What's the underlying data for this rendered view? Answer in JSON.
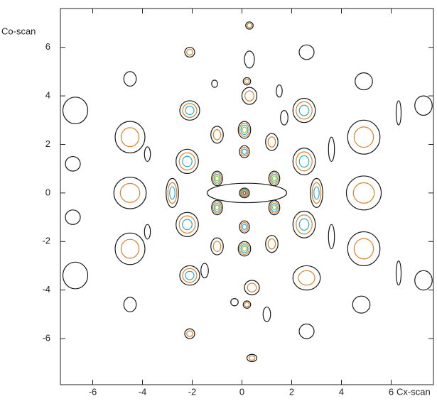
{
  "chart_data": {
    "type": "contour",
    "x_label": "Cx-scan",
    "y_label": "Co-scan",
    "xlim": [
      -7.3,
      7.7
    ],
    "ylim": [
      -7.9,
      7.6
    ],
    "xticks": [
      -6,
      -4,
      -2,
      0,
      2,
      4,
      6
    ],
    "yticks": [
      -6,
      -4,
      -2,
      0,
      2,
      4,
      6
    ],
    "level_colors": [
      "#1a1a1a",
      "#d9822b",
      "#29a9d9",
      "#a8c820",
      "#d0145a"
    ],
    "contours": [
      {
        "x": -6.7,
        "y": 3.4,
        "rx": 0.5,
        "ry": 0.55,
        "n": 1
      },
      {
        "x": -6.8,
        "y": 1.2,
        "rx": 0.3,
        "ry": 0.3,
        "n": 1
      },
      {
        "x": -6.8,
        "y": -1.0,
        "rx": 0.3,
        "ry": 0.3,
        "n": 1
      },
      {
        "x": -6.7,
        "y": -3.4,
        "rx": 0.5,
        "ry": 0.55,
        "n": 1
      },
      {
        "x": -4.5,
        "y": 2.3,
        "rx": 0.6,
        "ry": 0.65,
        "n": 2
      },
      {
        "x": -4.5,
        "y": 0.0,
        "rx": 0.65,
        "ry": 0.65,
        "n": 2
      },
      {
        "x": -4.5,
        "y": -2.3,
        "rx": 0.6,
        "ry": 0.65,
        "n": 2
      },
      {
        "x": 4.9,
        "y": 2.3,
        "rx": 0.65,
        "ry": 0.7,
        "n": 2
      },
      {
        "x": 4.9,
        "y": 0.0,
        "rx": 0.7,
        "ry": 0.7,
        "n": 2
      },
      {
        "x": 4.9,
        "y": -2.3,
        "rx": 0.65,
        "ry": 0.7,
        "n": 2
      },
      {
        "x": 2.5,
        "y": 3.4,
        "rx": 0.45,
        "ry": 0.5,
        "n": 3
      },
      {
        "x": 2.6,
        "y": -3.5,
        "rx": 0.55,
        "ry": 0.5,
        "n": 2
      },
      {
        "x": -2.1,
        "y": 3.4,
        "rx": 0.4,
        "ry": 0.4,
        "n": 3
      },
      {
        "x": -2.1,
        "y": -3.4,
        "rx": 0.4,
        "ry": 0.4,
        "n": 3
      },
      {
        "x": -2.2,
        "y": 1.3,
        "rx": 0.45,
        "ry": 0.5,
        "n": 3
      },
      {
        "x": -2.2,
        "y": -1.3,
        "rx": 0.45,
        "ry": 0.5,
        "n": 3
      },
      {
        "x": 2.5,
        "y": 1.3,
        "rx": 0.45,
        "ry": 0.55,
        "n": 3
      },
      {
        "x": 2.5,
        "y": -1.3,
        "rx": 0.45,
        "ry": 0.55,
        "n": 3
      },
      {
        "x": -2.8,
        "y": 0.0,
        "rx": 0.25,
        "ry": 0.6,
        "n": 3
      },
      {
        "x": 3.0,
        "y": 0.0,
        "rx": 0.25,
        "ry": 0.6,
        "n": 3
      },
      {
        "x": -1.0,
        "y": 0.6,
        "rx": 0.22,
        "ry": 0.3,
        "n": 4
      },
      {
        "x": -1.0,
        "y": -0.6,
        "rx": 0.22,
        "ry": 0.3,
        "n": 4
      },
      {
        "x": 1.3,
        "y": 0.6,
        "rx": 0.22,
        "ry": 0.3,
        "n": 4
      },
      {
        "x": 1.3,
        "y": -0.6,
        "rx": 0.22,
        "ry": 0.3,
        "n": 4
      },
      {
        "x": 0.2,
        "y": 0.0,
        "rx": 1.6,
        "ry": 0.4,
        "n": 1
      },
      {
        "x": 0.1,
        "y": 0.0,
        "rx": 0.2,
        "ry": 0.2,
        "n": 5
      },
      {
        "x": 0.1,
        "y": 2.6,
        "rx": 0.25,
        "ry": 0.35,
        "n": 4
      },
      {
        "x": 0.1,
        "y": -2.3,
        "rx": 0.25,
        "ry": 0.3,
        "n": 4
      },
      {
        "x": 0.1,
        "y": 1.7,
        "rx": 0.2,
        "ry": 0.25,
        "n": 3
      },
      {
        "x": 0.1,
        "y": -1.4,
        "rx": 0.2,
        "ry": 0.25,
        "n": 3
      },
      {
        "x": -1.0,
        "y": 2.4,
        "rx": 0.25,
        "ry": 0.35,
        "n": 2
      },
      {
        "x": 1.2,
        "y": 2.1,
        "rx": 0.25,
        "ry": 0.35,
        "n": 2
      },
      {
        "x": -1.0,
        "y": -2.2,
        "rx": 0.25,
        "ry": 0.35,
        "n": 2
      },
      {
        "x": 1.2,
        "y": -2.1,
        "rx": 0.25,
        "ry": 0.35,
        "n": 2
      },
      {
        "x": 0.2,
        "y": 4.6,
        "rx": 0.15,
        "ry": 0.15,
        "n": 2
      },
      {
        "x": 0.2,
        "y": -4.6,
        "rx": 0.15,
        "ry": 0.15,
        "n": 2
      },
      {
        "x": 0.3,
        "y": 4.0,
        "rx": 0.3,
        "ry": 0.35,
        "n": 2
      },
      {
        "x": 0.4,
        "y": -3.9,
        "rx": 0.3,
        "ry": 0.3,
        "n": 2
      },
      {
        "x": 0.3,
        "y": 6.9,
        "rx": 0.15,
        "ry": 0.15,
        "n": 2
      },
      {
        "x": 0.4,
        "y": -6.8,
        "rx": 0.2,
        "ry": 0.15,
        "n": 2
      },
      {
        "x": -2.1,
        "y": 5.8,
        "rx": 0.2,
        "ry": 0.2,
        "n": 2
      },
      {
        "x": -2.1,
        "y": -5.8,
        "rx": 0.2,
        "ry": 0.2,
        "n": 2
      },
      {
        "x": 2.6,
        "y": 5.8,
        "rx": 0.3,
        "ry": 0.3,
        "n": 1
      },
      {
        "x": 2.6,
        "y": -5.7,
        "rx": 0.3,
        "ry": 0.3,
        "n": 1
      },
      {
        "x": -4.5,
        "y": 4.7,
        "rx": 0.25,
        "ry": 0.3,
        "n": 1
      },
      {
        "x": -4.5,
        "y": -4.6,
        "rx": 0.25,
        "ry": 0.3,
        "n": 1
      },
      {
        "x": 4.9,
        "y": 4.6,
        "rx": 0.35,
        "ry": 0.35,
        "n": 1
      },
      {
        "x": 4.8,
        "y": -4.6,
        "rx": 0.35,
        "ry": 0.35,
        "n": 1
      },
      {
        "x": -3.8,
        "y": 1.6,
        "rx": 0.12,
        "ry": 0.3,
        "n": 1
      },
      {
        "x": -3.8,
        "y": -1.6,
        "rx": 0.12,
        "ry": 0.3,
        "n": 1
      },
      {
        "x": 3.6,
        "y": 1.8,
        "rx": 0.12,
        "ry": 0.5,
        "n": 1
      },
      {
        "x": 3.6,
        "y": -1.8,
        "rx": 0.12,
        "ry": 0.5,
        "n": 1
      },
      {
        "x": 7.3,
        "y": 3.6,
        "rx": 0.35,
        "ry": 0.4,
        "n": 1
      },
      {
        "x": 7.3,
        "y": -3.6,
        "rx": 0.35,
        "ry": 0.4,
        "n": 1
      },
      {
        "x": 6.3,
        "y": 3.3,
        "rx": 0.1,
        "ry": 0.5,
        "n": 1
      },
      {
        "x": 6.3,
        "y": -3.3,
        "rx": 0.1,
        "ry": 0.5,
        "n": 1
      },
      {
        "x": -1.1,
        "y": 4.5,
        "rx": 0.12,
        "ry": 0.15,
        "n": 1
      },
      {
        "x": 1.5,
        "y": 4.2,
        "rx": 0.12,
        "ry": 0.25,
        "n": 1
      },
      {
        "x": -0.3,
        "y": -4.5,
        "rx": 0.15,
        "ry": 0.15,
        "n": 1
      },
      {
        "x": 1.0,
        "y": -5.0,
        "rx": 0.15,
        "ry": 0.3,
        "n": 1
      },
      {
        "x": 1.7,
        "y": 3.1,
        "rx": 0.15,
        "ry": 0.3,
        "n": 1
      },
      {
        "x": -1.5,
        "y": -3.2,
        "rx": 0.15,
        "ry": 0.3,
        "n": 1
      },
      {
        "x": 0.3,
        "y": 5.5,
        "rx": 0.2,
        "ry": 0.35,
        "n": 1
      }
    ]
  }
}
